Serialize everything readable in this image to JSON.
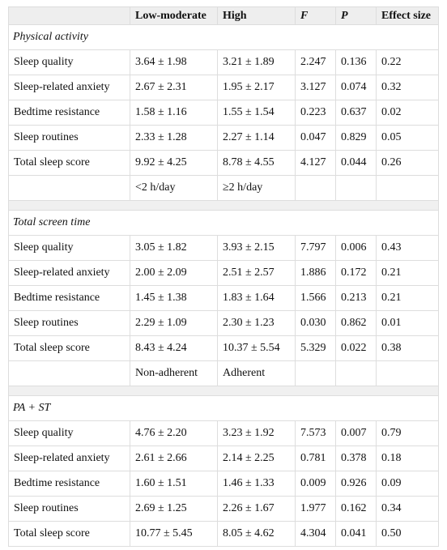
{
  "table": {
    "columns": [
      "Low-moderate",
      "High",
      "F",
      "P",
      "Effect size"
    ],
    "sections": [
      {
        "title": "Physical activity",
        "rows": [
          [
            "Sleep quality",
            "3.64 ± 1.98",
            "3.21 ± 1.89",
            "2.247",
            "0.136",
            "0.22"
          ],
          [
            "Sleep-related anxiety",
            "2.67 ± 2.31",
            "1.95 ± 2.17",
            "3.127",
            "0.074",
            "0.32"
          ],
          [
            "Bedtime resistance",
            "1.58 ± 1.16",
            "1.55 ± 1.54",
            "0.223",
            "0.637",
            "0.02"
          ],
          [
            "Sleep routines",
            "2.33 ± 1.28",
            "2.27 ± 1.14",
            "0.047",
            "0.829",
            "0.05"
          ],
          [
            "Total sleep score",
            "9.92 ± 4.25",
            "8.78 ± 4.55",
            "4.127",
            "0.044",
            "0.26"
          ]
        ],
        "labels": [
          "<2 h/day",
          "≥2 h/day"
        ]
      },
      {
        "title": "Total screen time",
        "rows": [
          [
            "Sleep quality",
            "3.05 ± 1.82",
            "3.93 ± 2.15",
            "7.797",
            "0.006",
            "0.43"
          ],
          [
            "Sleep-related anxiety",
            "2.00 ± 2.09",
            "2.51 ± 2.57",
            "1.886",
            "0.172",
            "0.21"
          ],
          [
            "Bedtime resistance",
            "1.45 ± 1.38",
            "1.83 ± 1.64",
            "1.566",
            "0.213",
            "0.21"
          ],
          [
            "Sleep routines",
            "2.29 ± 1.09",
            "2.30 ± 1.23",
            "0.030",
            "0.862",
            "0.01"
          ],
          [
            "Total sleep score",
            "8.43 ± 4.24",
            "10.37 ± 5.54",
            "5.329",
            "0.022",
            "0.38"
          ]
        ],
        "labels": [
          "Non-adherent",
          "Adherent"
        ]
      },
      {
        "title": "PA + ST",
        "rows": [
          [
            "Sleep quality",
            "4.76 ± 2.20",
            "3.23 ± 1.92",
            "7.573",
            "0.007",
            "0.79"
          ],
          [
            "Sleep-related anxiety",
            "2.61 ± 2.66",
            "2.14 ± 2.25",
            "0.781",
            "0.378",
            "0.18"
          ],
          [
            "Bedtime resistance",
            "1.60 ± 1.51",
            "1.46 ± 1.33",
            "0.009",
            "0.926",
            "0.09"
          ],
          [
            "Sleep routines",
            "2.69 ± 1.25",
            "2.26 ± 1.67",
            "1.977",
            "0.162",
            "0.34"
          ],
          [
            "Total sleep score",
            "10.77 ± 5.45",
            "8.05 ± 4.62",
            "4.304",
            "0.041",
            "0.50"
          ]
        ]
      }
    ]
  }
}
